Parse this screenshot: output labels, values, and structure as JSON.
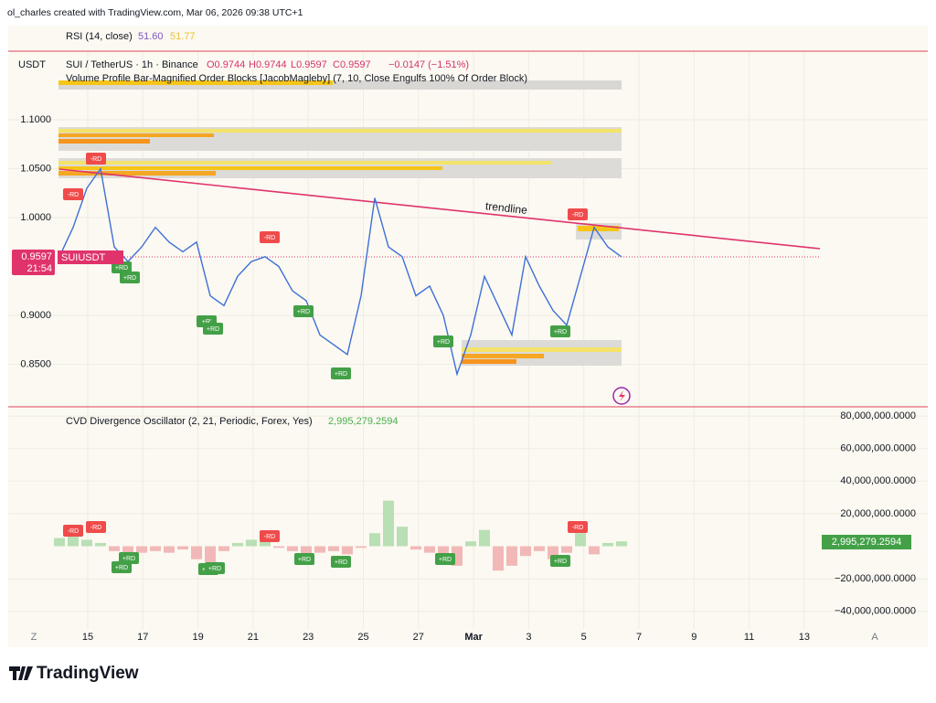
{
  "header": {
    "credit": "ol_charles created with TradingView.com, Mar 06, 2026 09:38 UTC+1"
  },
  "rsi": {
    "title": "RSI (14, close)",
    "value1": "51.60",
    "value2": "51.77"
  },
  "main": {
    "currency": "USDT",
    "symbol": "SUI / TetherUS · 1h · Binance",
    "open": "O0.9744",
    "high": "H0.9744",
    "low": "L0.9597",
    "close": "C0.9597",
    "change": "−0.0147 (−1.51%)",
    "indicator": "Volume Profile Bar-Magnified Order Blocks [JacobMagleby] (7, 10, Close Engulfs 100% Of Order Block)",
    "trendline_label": "trendline",
    "last_price": "0.9597",
    "countdown": "21:54",
    "ticker_tag": "SUIUSDT",
    "price_axis": {
      "ylim": [
        0.82,
        1.16
      ],
      "ticks": [
        {
          "value": 1.1,
          "label": "1.1000"
        },
        {
          "value": 1.05,
          "label": "1.0500"
        },
        {
          "value": 1.0,
          "label": "1.0000"
        },
        {
          "value": 0.9,
          "label": "0.9000"
        },
        {
          "value": 0.85,
          "label": "0.8500"
        }
      ]
    },
    "closes": [
      0.96,
      0.99,
      1.03,
      1.05,
      0.97,
      0.955,
      0.97,
      0.99,
      0.975,
      0.965,
      0.975,
      0.92,
      0.91,
      0.94,
      0.955,
      0.96,
      0.95,
      0.925,
      0.915,
      0.88,
      0.87,
      0.86,
      0.92,
      1.02,
      0.97,
      0.96,
      0.92,
      0.93,
      0.9,
      0.84,
      0.88,
      0.94,
      0.91,
      0.88,
      0.96,
      0.93,
      0.905,
      0.89,
      0.94,
      0.99,
      0.97,
      0.9597
    ],
    "signals": [
      "-RD",
      "-RD",
      "+RD",
      "+RD",
      "+R'",
      "+RD",
      "-RD",
      "+RD",
      "+RD",
      "+RD",
      "-RD",
      "+RD"
    ]
  },
  "cvd": {
    "title": "CVD Divergence Oscillator (2, 21, Periodic, Forex, Yes)",
    "value": "2,995,279.2594",
    "axis": {
      "ylim": [
        -45000000,
        85000000
      ],
      "ticks": [
        {
          "value": 80000000,
          "label": "80,000,000.0000"
        },
        {
          "value": 60000000,
          "label": "60,000,000.0000"
        },
        {
          "value": 40000000,
          "label": "40,000,000.0000"
        },
        {
          "value": 20000000,
          "label": "20,000,000.0000"
        },
        {
          "value": -20000000,
          "label": "−20,000,000.0000"
        },
        {
          "value": -40000000,
          "label": "−40,000,000.0000"
        }
      ]
    },
    "values": [
      5000000,
      6000000,
      4000000,
      2000000,
      -3000000,
      -5000000,
      -4000000,
      -3000000,
      -4000000,
      -2000000,
      -8000000,
      -10000000,
      -3000000,
      2000000,
      4000000,
      3000000,
      -1000000,
      -3000000,
      -6000000,
      -4000000,
      -3000000,
      -5000000,
      -1000000,
      8000000,
      28000000,
      12000000,
      -2000000,
      -4000000,
      -6000000,
      -12000000,
      3000000,
      10000000,
      -15000000,
      -12000000,
      -6000000,
      -3000000,
      -8000000,
      -4000000,
      8000000,
      -5000000,
      2000000,
      3000000
    ],
    "signals": [
      "-RD",
      "-RD",
      "+RD",
      "+RD",
      "+RD",
      "+RD",
      "-RD",
      "+RD",
      "+RD",
      "+RD",
      "-RD",
      "+RD"
    ]
  },
  "time_axis": {
    "left_button": "Z",
    "labels": [
      "15",
      "17",
      "19",
      "21",
      "23",
      "25",
      "27",
      "Mar",
      "3",
      "5",
      "7",
      "9",
      "11",
      "13"
    ],
    "right_button": "A"
  },
  "footer": {
    "logo": "TradingView"
  }
}
